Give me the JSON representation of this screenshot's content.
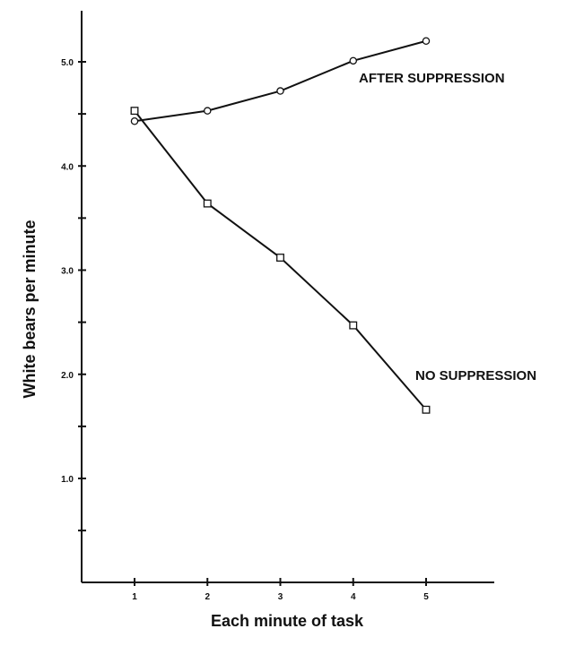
{
  "chart_data": {
    "type": "line",
    "xlabel": "Each minute of task",
    "ylabel": "White bears per minute",
    "x": [
      1,
      2,
      3,
      4,
      5
    ],
    "xlim": [
      0,
      6
    ],
    "ylim": [
      0,
      5.5
    ],
    "y_tick_values": [
      0.5,
      1.0,
      1.5,
      2.0,
      2.5,
      3.0,
      3.5,
      4.0,
      4.5,
      5.0
    ],
    "y_tick_labels": [
      "",
      "1.0",
      "",
      "2.0",
      "",
      "3.0",
      "",
      "4.0",
      "",
      "5.0"
    ],
    "x_tick_labels": [
      "1",
      "2",
      "3",
      "4",
      "5"
    ],
    "grid": false,
    "series": [
      {
        "name": "AFTER SUPPRESSION",
        "marker": "circle",
        "values": [
          4.43,
          4.53,
          4.72,
          5.01,
          5.2
        ]
      },
      {
        "name": "NO SUPPRESSION",
        "marker": "square",
        "values": [
          4.53,
          3.64,
          3.12,
          2.47,
          1.66
        ]
      }
    ]
  }
}
